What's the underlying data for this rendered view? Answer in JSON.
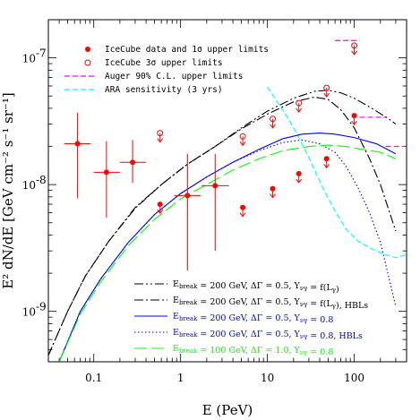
{
  "chart_data": {
    "type": "scatter",
    "xlabel": "E (PeV)",
    "ylabel": "E² dN/dE [GeV cm⁻² s⁻¹ sr⁻¹]",
    "xscale": "log",
    "yscale": "log",
    "xlim": [
      0.03,
      400
    ],
    "ylim": [
      4e-10,
      2e-07
    ],
    "x_tick_labels": [
      {
        "value": 0.1,
        "label": "0.1"
      },
      {
        "value": 1,
        "label": "1"
      },
      {
        "value": 10,
        "label": "10"
      },
      {
        "value": 100,
        "label": "100"
      }
    ],
    "y_tick_labels": [
      {
        "value": 1e-09,
        "label": "10",
        "exp": "-9"
      },
      {
        "value": 1e-08,
        "label": "10",
        "exp": "-8"
      },
      {
        "value": 1e-07,
        "label": "10",
        "exp": "-7"
      }
    ],
    "colors": {
      "red": "#ff0000",
      "magenta": "#ff00ff",
      "cyan": "#00ffff",
      "blue": "#0000ff",
      "green": "#00ff00",
      "black": "#000000"
    },
    "icecube_data": {
      "name": "IceCube data and 1σ upper limits",
      "points": [
        {
          "x": 0.065,
          "y": 2.1e-08,
          "xerr": [
            0.046,
            0.092
          ],
          "yerr": [
            7.8e-09,
            3.7e-08
          ]
        },
        {
          "x": 0.14,
          "y": 1.25e-08,
          "xerr": [
            0.1,
            0.2
          ],
          "yerr": [
            5.5e-09,
            2.2e-08
          ]
        },
        {
          "x": 0.28,
          "y": 1.5e-08,
          "xerr": [
            0.2,
            0.4
          ],
          "yerr": [
            1.03e-08,
            2.25e-08
          ]
        },
        {
          "x": 1.2,
          "y": 8.2e-09,
          "xerr": [
            0.85,
            1.7
          ],
          "yerr": [
            2.1e-09,
            1.75e-08
          ]
        },
        {
          "x": 2.5,
          "y": 9.8e-09,
          "xerr": [
            1.75,
            3.6
          ],
          "yerr": [
            3e-09,
            1.75e-08
          ]
        }
      ],
      "upper_limits": [
        {
          "x": 0.58,
          "y": 7e-09
        },
        {
          "x": 5.2,
          "y": 6.6e-09
        },
        {
          "x": 11.5,
          "y": 9.3e-09
        },
        {
          "x": 23,
          "y": 1.22e-08
        },
        {
          "x": 48,
          "y": 1.6e-08
        },
        {
          "x": 100,
          "y": 3.5e-08
        }
      ]
    },
    "icecube_3sigma": {
      "name": "IceCube 3σ upper limits",
      "points": [
        {
          "x": 0.58,
          "y": 2.55e-08
        },
        {
          "x": 5.2,
          "y": 2.4e-08
        },
        {
          "x": 11.5,
          "y": 3.3e-08
        },
        {
          "x": 23,
          "y": 4.4e-08
        },
        {
          "x": 48,
          "y": 5.8e-08
        },
        {
          "x": 100,
          "y": 1.25e-07
        }
      ]
    },
    "auger": {
      "name": "Auger 90% C.L. upper limits",
      "segments": [
        {
          "x": [
            60,
            115
          ],
          "y": 1.37e-07
        },
        {
          "x": 115,
          "y": [
            1.37e-07,
            3.4e-08
          ]
        },
        {
          "x": [
            115,
            230
          ],
          "y": 3.4e-08
        },
        {
          "x": 230,
          "y": [
            3.4e-08,
            2e-08
          ]
        },
        {
          "x": [
            230,
            400
          ],
          "y": 2e-08
        }
      ]
    },
    "ara": {
      "name": "ARA sensitivity (3 yrs)",
      "x": [
        10,
        13,
        17,
        22,
        28,
        35,
        45,
        60,
        80,
        110,
        160,
        230,
        300,
        400
      ],
      "y": [
        5.9e-08,
        4.5e-08,
        3.4e-08,
        2.5e-08,
        1.8e-08,
        1.3e-08,
        9e-09,
        6.2e-09,
        4.5e-09,
        3.6e-09,
        3.1e-09,
        2.8e-09,
        2.65e-09,
        2.8e-09
      ]
    },
    "series": [
      {
        "name": "E_break = 200 GeV, ΔΓ = 0.5, Y_νγ = f(L_γ)",
        "style": "dashdotdot",
        "color": "#000000",
        "x": [
          0.03,
          0.05,
          0.08,
          0.15,
          0.3,
          0.6,
          1.2,
          2.5,
          5,
          10,
          20,
          35,
          50,
          70,
          100,
          150,
          250,
          300
        ],
        "y": [
          4.5e-10,
          1e-09,
          1.9e-09,
          3.6e-09,
          6.6e-09,
          1e-08,
          1.45e-08,
          2e-08,
          2.8e-08,
          3.8e-08,
          4.8e-08,
          5.45e-08,
          5.55e-08,
          5.3e-08,
          4.8e-08,
          4.1e-08,
          3.3e-08,
          3e-08
        ]
      },
      {
        "name": "E_break = 200 GeV, ΔΓ = 0.5, Y_νγ = f(L_γ), HBLs",
        "style": "dashdot",
        "color": "#000000",
        "x": [
          0.03,
          0.05,
          0.08,
          0.15,
          0.3,
          0.6,
          1.2,
          2.5,
          5,
          10,
          20,
          35,
          50,
          70,
          100,
          150,
          200,
          300
        ],
        "y": [
          4.5e-10,
          1e-09,
          1.9e-09,
          3.6e-09,
          6.5e-09,
          1e-08,
          1.45e-08,
          2e-08,
          2.75e-08,
          3.6e-08,
          4.5e-08,
          4.9e-08,
          4.7e-08,
          3.9e-08,
          2.8e-08,
          1.6e-08,
          1e-08,
          4.3e-09
        ]
      },
      {
        "name": "E_break = 200 GeV, ΔΓ = 0.5, Y_νγ = 0.8",
        "style": "solid",
        "color": "#0000ff",
        "x": [
          0.04,
          0.07,
          0.12,
          0.25,
          0.5,
          1,
          2,
          4,
          8,
          15,
          25,
          40,
          60,
          100,
          180,
          300
        ],
        "y": [
          4e-10,
          1e-09,
          1.8e-09,
          3.5e-09,
          5.8e-09,
          8.5e-09,
          1.15e-08,
          1.5e-08,
          1.9e-08,
          2.3e-08,
          2.5e-08,
          2.55e-08,
          2.5e-08,
          2.35e-08,
          2.1e-08,
          1.75e-08
        ]
      },
      {
        "name": "E_break = 200 GeV, ΔΓ = 0.5, Y_νγ = 0.8, HBLs",
        "style": "dotted",
        "color": "#0000ff",
        "x": [
          0.04,
          0.07,
          0.12,
          0.25,
          0.5,
          1,
          2,
          4,
          8,
          15,
          25,
          40,
          60,
          80,
          110,
          150,
          200,
          300
        ],
        "y": [
          4e-10,
          1e-09,
          1.8e-09,
          3.5e-09,
          5.8e-09,
          8.5e-09,
          1.15e-08,
          1.5e-08,
          1.85e-08,
          2.15e-08,
          2.25e-08,
          2.1e-08,
          1.8e-08,
          1.4e-08,
          9.5e-09,
          6e-09,
          3.5e-09,
          1.1e-09
        ]
      },
      {
        "name": "E_break = 100 GeV, ΔΓ = 1.0, Y_νγ = 0.8",
        "style": "longdash",
        "color": "#00ff00",
        "x": [
          0.04,
          0.07,
          0.12,
          0.25,
          0.5,
          1,
          2,
          4,
          8,
          15,
          30,
          50,
          80,
          120,
          200,
          300
        ],
        "y": [
          4e-10,
          9.5e-10,
          1.7e-09,
          3.3e-09,
          5.3e-09,
          7.7e-09,
          1e-08,
          1.3e-08,
          1.6e-08,
          1.85e-08,
          2e-08,
          2.05e-08,
          2e-08,
          1.9e-08,
          1.8e-08,
          1.6e-08
        ]
      }
    ],
    "legend_top": [
      {
        "label": "IceCube data and 1σ upper limits"
      },
      {
        "label": "IceCube 3σ upper limits"
      },
      {
        "label": "Auger 90% C.L. upper limits"
      },
      {
        "label": "ARA sensitivity (3 yrs)"
      }
    ],
    "legend_bottom": [
      {
        "pre": "E",
        "sub": "break",
        "mid": " = 200 GeV, ΔΓ = 0.5, Y",
        "sub2": "νγ",
        "post": " = f(L",
        "sub3": "γ",
        "tail": ")"
      },
      {
        "pre": "E",
        "sub": "break",
        "mid": " = 200 GeV, ΔΓ = 0.5, Y",
        "sub2": "νγ",
        "post": " = f(L",
        "sub3": "γ",
        "tail": "), HBLs"
      },
      {
        "pre": "E",
        "sub": "break",
        "mid": " = 200 GeV, ΔΓ = 0.5, Y",
        "sub2": "νγ",
        "post": " = 0.8",
        "sub3": "",
        "tail": ""
      },
      {
        "pre": "E",
        "sub": "break",
        "mid": " = 200 GeV, ΔΓ = 0.5, Y",
        "sub2": "νγ",
        "post": " = 0.8, HBLs",
        "sub3": "",
        "tail": ""
      },
      {
        "pre": "E",
        "sub": "break",
        "mid": " = 100 GeV, ΔΓ = 1.0, Y",
        "sub2": "νγ",
        "post": " = 0.8",
        "sub3": "",
        "tail": ""
      }
    ]
  }
}
